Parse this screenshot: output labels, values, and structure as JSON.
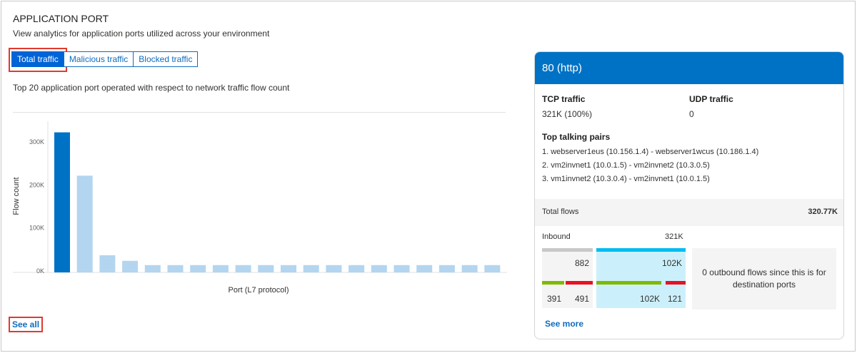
{
  "header": {
    "title": "APPLICATION PORT",
    "subtitle": "View analytics for application ports utilized across your environment"
  },
  "tabs": [
    {
      "label": "Total traffic",
      "active": true
    },
    {
      "label": "Malicious traffic",
      "active": false
    },
    {
      "label": "Blocked traffic",
      "active": false
    }
  ],
  "description": "Top 20 application port operated with respect to network traffic flow count",
  "see_all": "See all",
  "colors": {
    "selected_bar": "#0072c6",
    "bar": "#b3d5ef",
    "header": "#0072c6",
    "green": "#7fba00",
    "red": "#e81123",
    "cyan": "#00bcf2"
  },
  "chart_data": {
    "type": "bar",
    "title": "",
    "xlabel": "Port (L7 protocol)",
    "ylabel": "Flow count",
    "ylim": [
      0,
      330000
    ],
    "yticks": [
      0,
      100000,
      200000,
      300000
    ],
    "ytick_labels": [
      "0K",
      "100K",
      "200K",
      "300K"
    ],
    "values": [
      320770,
      220000,
      35000,
      22000,
      12000,
      12000,
      12000,
      12000,
      12000,
      12000,
      12000,
      12000,
      12000,
      12000,
      12000,
      12000,
      12000,
      12000,
      12000,
      12000
    ],
    "selected_index": 0,
    "grid": false
  },
  "detail": {
    "port": "80 (http)",
    "tcp_label": "TCP traffic",
    "tcp_value": "321K (100%)",
    "udp_label": "UDP traffic",
    "udp_value": "0",
    "pairs_label": "Top talking pairs",
    "pairs": [
      "1. webserver1eus (10.156.1.4) - webserver1wcus (10.186.1.4)",
      "2. vm2invnet1 (10.0.1.5) - vm2invnet2 (10.3.0.5)",
      "3. vm1invnet2 (10.3.0.4) - vm2invnet1 (10.0.1.5)"
    ],
    "total_label": "Total flows",
    "total_value": "320.77K",
    "inbound_label": "Inbound",
    "inbound_value": "321K",
    "box1": {
      "top": "882",
      "left": "391",
      "right": "491"
    },
    "box2": {
      "top": "102K",
      "left": "102K",
      "right": "121"
    },
    "outbound_note": "0 outbound flows since this is for destination ports",
    "see_more": "See more"
  }
}
